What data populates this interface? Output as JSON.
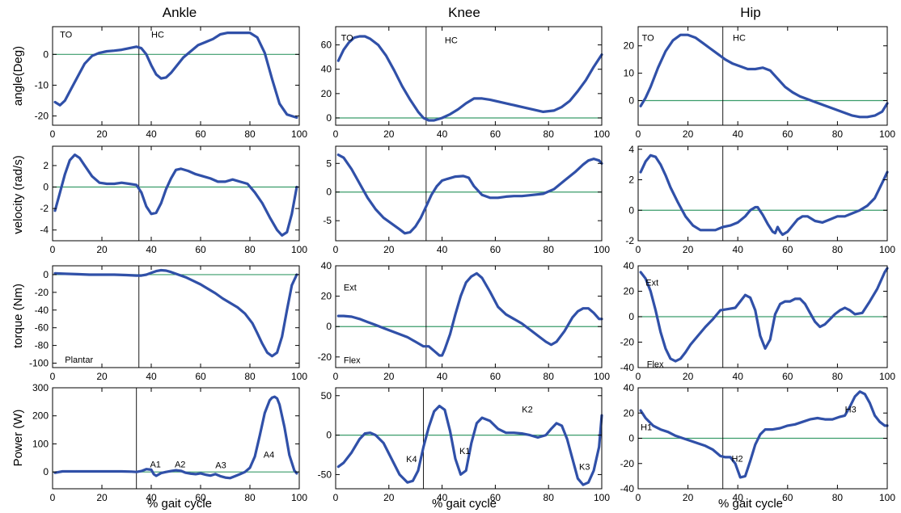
{
  "figure": {
    "column_titles": [
      "Ankle",
      "Knee",
      "Hip"
    ],
    "row_ylabels": [
      "angle(Deg)",
      "velocity (rad/s)",
      "torque (Nm)",
      "Power (W)"
    ],
    "xlabel": "% gait cycle",
    "colors": {
      "line": "#3050a8",
      "zero": "#3a9c6a",
      "axis": "#000000",
      "vline": "#000000"
    }
  },
  "chart_data": [
    {
      "id": "ankle-angle",
      "type": "line",
      "xlim": [
        0,
        100
      ],
      "ylim": [
        -23,
        9
      ],
      "yticks": [
        -20,
        -10,
        0
      ],
      "xticks": [
        0,
        20,
        40,
        60,
        80,
        100
      ],
      "vline": 35,
      "x": [
        1,
        3,
        5,
        7,
        10,
        13,
        16,
        19,
        22,
        25,
        28,
        31,
        34,
        36,
        38,
        40,
        42,
        44,
        46,
        48,
        50,
        53,
        56,
        59,
        62,
        65,
        68,
        71,
        74,
        77,
        80,
        83,
        86,
        89,
        92,
        95,
        97,
        99
      ],
      "y": [
        -15.5,
        -16.5,
        -15,
        -12,
        -7.5,
        -3,
        -0.5,
        0.5,
        1,
        1.2,
        1.5,
        2,
        2.5,
        2,
        0,
        -3.5,
        -6.5,
        -7.8,
        -7.5,
        -6,
        -4,
        -1,
        1,
        3,
        4,
        5,
        6.5,
        7,
        7,
        7,
        7,
        5.5,
        0.5,
        -8,
        -16,
        -19.5,
        -20,
        -20.5
      ],
      "annotations": [
        {
          "text": "TO",
          "x": 3,
          "y": 6.5
        },
        {
          "text": "HC",
          "x": 40,
          "y": 6.5
        }
      ]
    },
    {
      "id": "knee-angle",
      "type": "line",
      "xlim": [
        0,
        100
      ],
      "ylim": [
        -6,
        75
      ],
      "yticks": [
        0,
        20,
        40,
        60
      ],
      "xticks": [
        0,
        20,
        40,
        60,
        80,
        100
      ],
      "vline": 34,
      "x": [
        1,
        3,
        5,
        7,
        9,
        11,
        13,
        16,
        19,
        22,
        25,
        28,
        31,
        33,
        35,
        37,
        40,
        43,
        46,
        49,
        52,
        55,
        58,
        62,
        66,
        70,
        74,
        78,
        82,
        85,
        88,
        91,
        94,
        97,
        100
      ],
      "y": [
        47,
        56,
        62,
        66,
        67,
        67,
        65,
        60,
        51,
        39,
        26,
        15,
        5,
        0,
        -2,
        -2,
        0,
        3,
        7,
        12,
        16,
        16,
        15,
        13,
        11,
        9,
        7,
        5,
        6,
        9,
        14,
        22,
        31,
        42,
        52
      ],
      "annotations": [
        {
          "text": "TO",
          "x": 2,
          "y": 66
        },
        {
          "text": "HC",
          "x": 41,
          "y": 64
        }
      ]
    },
    {
      "id": "hip-angle",
      "type": "line",
      "xlim": [
        0,
        100
      ],
      "ylim": [
        -9,
        27
      ],
      "yticks": [
        0,
        10,
        20
      ],
      "xticks": [
        0,
        20,
        40,
        60,
        80,
        100
      ],
      "vline": 34,
      "x": [
        1,
        3,
        5,
        8,
        11,
        14,
        17,
        20,
        23,
        26,
        29,
        32,
        35,
        38,
        41,
        44,
        47,
        50,
        53,
        56,
        59,
        62,
        65,
        68,
        71,
        74,
        77,
        80,
        83,
        86,
        89,
        92,
        95,
        98,
        100
      ],
      "y": [
        -2,
        1,
        5,
        12,
        18,
        22,
        24,
        24,
        23,
        21,
        19,
        17,
        15,
        13.5,
        12.5,
        11.5,
        11.5,
        12,
        11,
        8,
        5,
        3,
        1.5,
        0.5,
        -0.5,
        -1.5,
        -2.5,
        -3.5,
        -4.5,
        -5.5,
        -6,
        -6,
        -5.5,
        -4,
        -1
      ],
      "annotations": [
        {
          "text": "TO",
          "x": 1.5,
          "y": 23
        },
        {
          "text": "HC",
          "x": 38,
          "y": 23
        }
      ]
    },
    {
      "id": "ankle-velocity",
      "type": "line",
      "xlim": [
        0,
        100
      ],
      "ylim": [
        -5,
        3.8
      ],
      "yticks": [
        -4,
        -2,
        0,
        2
      ],
      "xticks": [
        0,
        20,
        40,
        60,
        80,
        100
      ],
      "vline": 35,
      "x": [
        1,
        3,
        5,
        7,
        9,
        11,
        13,
        16,
        19,
        22,
        25,
        28,
        31,
        34,
        36,
        38,
        40,
        42,
        44,
        46,
        48,
        50,
        52,
        55,
        58,
        61,
        64,
        67,
        70,
        73,
        76,
        79,
        82,
        85,
        88,
        91,
        93,
        95,
        97,
        99
      ],
      "y": [
        -2.2,
        -0.5,
        1.2,
        2.5,
        3,
        2.7,
        2,
        1,
        0.4,
        0.3,
        0.3,
        0.4,
        0.3,
        0.2,
        -0.5,
        -1.8,
        -2.5,
        -2.4,
        -1.5,
        -0.2,
        0.8,
        1.6,
        1.7,
        1.5,
        1.2,
        1,
        0.8,
        0.5,
        0.5,
        0.7,
        0.5,
        0.3,
        -0.5,
        -1.5,
        -2.8,
        -4,
        -4.5,
        -4.2,
        -2.5,
        0
      ]
    },
    {
      "id": "knee-velocity",
      "type": "line",
      "xlim": [
        0,
        100
      ],
      "ylim": [
        -8.5,
        8
      ],
      "yticks": [
        -5,
        0,
        5
      ],
      "xticks": [
        0,
        20,
        40,
        60,
        80,
        100
      ],
      "vline": 34,
      "x": [
        1,
        3,
        6,
        9,
        12,
        15,
        18,
        21,
        24,
        26,
        28,
        30,
        32,
        34,
        36,
        38,
        40,
        42,
        45,
        48,
        50,
        52,
        55,
        58,
        61,
        64,
        67,
        70,
        74,
        78,
        82,
        86,
        90,
        93,
        95,
        97,
        99,
        100
      ],
      "y": [
        6.5,
        6,
        4,
        1.5,
        -1,
        -3,
        -4.5,
        -5.5,
        -6.5,
        -7.2,
        -7,
        -6,
        -4.5,
        -2.5,
        -0.5,
        1,
        2,
        2.3,
        2.7,
        2.8,
        2.5,
        1,
        -0.5,
        -1,
        -1,
        -0.8,
        -0.7,
        -0.7,
        -0.5,
        -0.3,
        0.5,
        2,
        3.5,
        4.8,
        5.5,
        5.8,
        5.5,
        5
      ]
    },
    {
      "id": "hip-velocity",
      "type": "line",
      "xlim": [
        0,
        100
      ],
      "ylim": [
        -2,
        4.2
      ],
      "yticks": [
        -2,
        0,
        2,
        4
      ],
      "xticks": [
        0,
        20,
        40,
        60,
        80,
        100
      ],
      "vline": 34,
      "x": [
        1,
        3,
        5,
        7,
        9,
        11,
        13,
        16,
        19,
        22,
        25,
        28,
        31,
        34,
        37,
        40,
        43,
        45,
        47,
        48,
        50,
        52,
        54,
        55,
        56,
        57,
        58,
        60,
        62,
        64,
        66,
        68,
        71,
        74,
        77,
        80,
        83,
        86,
        89,
        92,
        95,
        98,
        100
      ],
      "y": [
        2.5,
        3.2,
        3.6,
        3.5,
        3,
        2.3,
        1.5,
        0.5,
        -0.4,
        -1,
        -1.3,
        -1.3,
        -1.3,
        -1.1,
        -1,
        -0.8,
        -0.4,
        0,
        0.2,
        0.2,
        -0.3,
        -0.9,
        -1.4,
        -1.5,
        -1.1,
        -1.4,
        -1.6,
        -1.4,
        -1,
        -0.6,
        -0.4,
        -0.4,
        -0.7,
        -0.8,
        -0.6,
        -0.4,
        -0.4,
        -0.2,
        0,
        0.3,
        0.8,
        1.8,
        2.5
      ]
    },
    {
      "id": "ankle-torque",
      "type": "line",
      "xlim": [
        0,
        100
      ],
      "ylim": [
        -105,
        10
      ],
      "yticks": [
        -100,
        -80,
        -60,
        -40,
        -20,
        0
      ],
      "xticks": [
        0,
        20,
        40,
        60,
        80,
        100
      ],
      "vline": 35,
      "x": [
        1,
        5,
        10,
        15,
        20,
        25,
        30,
        34,
        36,
        38,
        40,
        42,
        44,
        46,
        48,
        51,
        54,
        57,
        60,
        63,
        66,
        69,
        72,
        75,
        78,
        81,
        83,
        85,
        87,
        89,
        91,
        93,
        95,
        97,
        99
      ],
      "y": [
        1.5,
        1,
        0.5,
        0,
        0,
        0,
        -0.5,
        -1,
        -1,
        0,
        2,
        4,
        5,
        4.5,
        3,
        0,
        -3,
        -7,
        -11,
        -16,
        -21,
        -27,
        -32,
        -37,
        -44,
        -55,
        -66,
        -78,
        -88,
        -92,
        -88,
        -70,
        -40,
        -12,
        0
      ],
      "annotations": [
        {
          "text": "Plantar",
          "x": 5,
          "y": -96
        }
      ]
    },
    {
      "id": "knee-torque",
      "type": "line",
      "xlim": [
        0,
        100
      ],
      "ylim": [
        -27,
        40
      ],
      "yticks": [
        -20,
        0,
        20,
        40
      ],
      "xticks": [
        0,
        20,
        40,
        60,
        80,
        100
      ],
      "vline": 34,
      "x": [
        1,
        3,
        6,
        9,
        12,
        15,
        18,
        21,
        24,
        27,
        30,
        33,
        35,
        37,
        39,
        40,
        41,
        43,
        45,
        47,
        49,
        51,
        53,
        55,
        58,
        61,
        64,
        67,
        70,
        73,
        76,
        79,
        81,
        83,
        86,
        89,
        91,
        93,
        95,
        97,
        99,
        100
      ],
      "y": [
        7,
        7,
        6.5,
        5,
        3,
        1,
        -1,
        -3,
        -5,
        -7,
        -10,
        -13,
        -13,
        -16,
        -19,
        -19,
        -15,
        -5,
        8,
        20,
        29,
        33,
        35,
        32,
        23,
        13,
        8,
        5,
        2,
        -2,
        -6,
        -10,
        -12,
        -10,
        -3,
        6,
        10,
        12,
        12,
        9,
        5,
        5
      ],
      "annotations": [
        {
          "text": "Ext",
          "x": 3,
          "y": 26
        },
        {
          "text": "Flex",
          "x": 3,
          "y": -22
        }
      ]
    },
    {
      "id": "hip-torque",
      "type": "line",
      "xlim": [
        0,
        100
      ],
      "ylim": [
        -40,
        40
      ],
      "yticks": [
        -40,
        -20,
        0,
        20,
        40
      ],
      "xticks": [
        0,
        20,
        40,
        60,
        80,
        100
      ],
      "vline": 34,
      "x": [
        1,
        3,
        5,
        7,
        9,
        11,
        13,
        15,
        17,
        19,
        21,
        24,
        27,
        30,
        33,
        36,
        39,
        41,
        43,
        45,
        47,
        49,
        51,
        53,
        55,
        57,
        59,
        61,
        63,
        65,
        67,
        69,
        71,
        73,
        75,
        77,
        79,
        81,
        83,
        85,
        87,
        90,
        93,
        96,
        99,
        100
      ],
      "y": [
        35,
        30,
        20,
        5,
        -12,
        -25,
        -33,
        -35,
        -33,
        -28,
        -22,
        -15,
        -8,
        -2,
        5,
        6,
        7,
        12,
        17,
        15,
        5,
        -15,
        -25,
        -18,
        2,
        10,
        12,
        12,
        14,
        14,
        10,
        3,
        -4,
        -8,
        -6,
        -2,
        2,
        5,
        7,
        5,
        2,
        3,
        12,
        22,
        35,
        38
      ],
      "annotations": [
        {
          "text": "Ext",
          "x": 3,
          "y": 27
        },
        {
          "text": "Flex",
          "x": 3.5,
          "y": -37
        }
      ]
    },
    {
      "id": "ankle-power",
      "type": "line",
      "xlim": [
        0,
        100
      ],
      "ylim": [
        -60,
        300
      ],
      "yticks": [
        0,
        100,
        200,
        300
      ],
      "xticks": [
        0,
        20,
        40,
        60,
        80,
        100
      ],
      "vline": 34,
      "x": [
        1,
        4,
        8,
        12,
        16,
        20,
        24,
        28,
        32,
        34,
        36,
        38,
        40,
        41,
        42,
        44,
        46,
        48,
        50,
        52,
        54,
        56,
        58,
        60,
        62,
        64,
        66,
        68,
        70,
        72,
        74,
        76,
        78,
        80,
        82,
        84,
        86,
        88,
        89,
        90,
        91,
        92,
        94,
        96,
        98,
        99
      ],
      "y": [
        -3,
        2,
        2,
        2,
        2,
        2,
        2,
        2,
        1,
        0,
        3,
        10,
        8,
        -8,
        -14,
        -4,
        0,
        3,
        6,
        4,
        -3,
        -6,
        -8,
        -5,
        -10,
        -13,
        -8,
        -15,
        -20,
        -22,
        -15,
        -8,
        0,
        15,
        55,
        130,
        210,
        255,
        265,
        268,
        262,
        240,
        160,
        60,
        5,
        -5
      ],
      "annotations": [
        {
          "text": "A1",
          "x": 39.5,
          "y": 28
        },
        {
          "text": "A2",
          "x": 49.5,
          "y": 28
        },
        {
          "text": "A3",
          "x": 66,
          "y": 25
        },
        {
          "text": "A4",
          "x": 85.5,
          "y": 62
        }
      ]
    },
    {
      "id": "knee-power",
      "type": "line",
      "xlim": [
        0,
        100
      ],
      "ylim": [
        -68,
        60
      ],
      "yticks": [
        -50,
        0,
        50
      ],
      "xticks": [
        0,
        20,
        40,
        60,
        80,
        100
      ],
      "vline": 33,
      "x": [
        1,
        3,
        6,
        9,
        11,
        13,
        15,
        18,
        21,
        24,
        27,
        29,
        31,
        33,
        35,
        37,
        39,
        41,
        43,
        45,
        47,
        49,
        51,
        53,
        55,
        58,
        61,
        64,
        67,
        70,
        73,
        76,
        79,
        81,
        83,
        85,
        87,
        89,
        91,
        93,
        95,
        97,
        99,
        100
      ],
      "y": [
        -40,
        -35,
        -22,
        -5,
        2,
        3,
        0,
        -10,
        -30,
        -50,
        -60,
        -58,
        -45,
        -15,
        10,
        30,
        37,
        32,
        5,
        -30,
        -50,
        -45,
        -10,
        15,
        22,
        18,
        8,
        3,
        3,
        2,
        0,
        -3,
        0,
        8,
        15,
        12,
        -5,
        -30,
        -55,
        -63,
        -60,
        -45,
        -15,
        25
      ],
      "annotations": [
        {
          "text": "K4",
          "x": 26.5,
          "y": -30
        },
        {
          "text": "K1",
          "x": 46.5,
          "y": -20
        },
        {
          "text": "K2",
          "x": 70,
          "y": 33
        },
        {
          "text": "K3",
          "x": 91.5,
          "y": -40
        }
      ]
    },
    {
      "id": "hip-power",
      "type": "line",
      "xlim": [
        0,
        100
      ],
      "ylim": [
        -40,
        40
      ],
      "yticks": [
        -40,
        -20,
        0,
        20,
        40
      ],
      "xticks": [
        0,
        20,
        40,
        60,
        80,
        100
      ],
      "vline": 34,
      "x": [
        1,
        3,
        6,
        9,
        12,
        15,
        18,
        21,
        24,
        27,
        30,
        33,
        35,
        37,
        39,
        41,
        43,
        45,
        47,
        49,
        51,
        54,
        57,
        60,
        63,
        66,
        69,
        72,
        75,
        78,
        81,
        83,
        85,
        87,
        89,
        91,
        93,
        95,
        97,
        99,
        100
      ],
      "y": [
        22,
        16,
        10,
        7,
        5,
        2,
        0,
        -2,
        -4,
        -6,
        -9,
        -14,
        -15,
        -15,
        -20,
        -31,
        -30,
        -18,
        -5,
        3,
        7,
        7,
        8,
        10,
        11,
        13,
        15,
        16,
        15,
        15,
        17,
        18,
        25,
        33,
        37,
        35,
        28,
        18,
        13,
        10,
        10
      ],
      "annotations": [
        {
          "text": "H1",
          "x": 1,
          "y": 9
        },
        {
          "text": "H2",
          "x": 37.5,
          "y": -16
        },
        {
          "text": "H3",
          "x": 83,
          "y": 23
        }
      ]
    }
  ]
}
